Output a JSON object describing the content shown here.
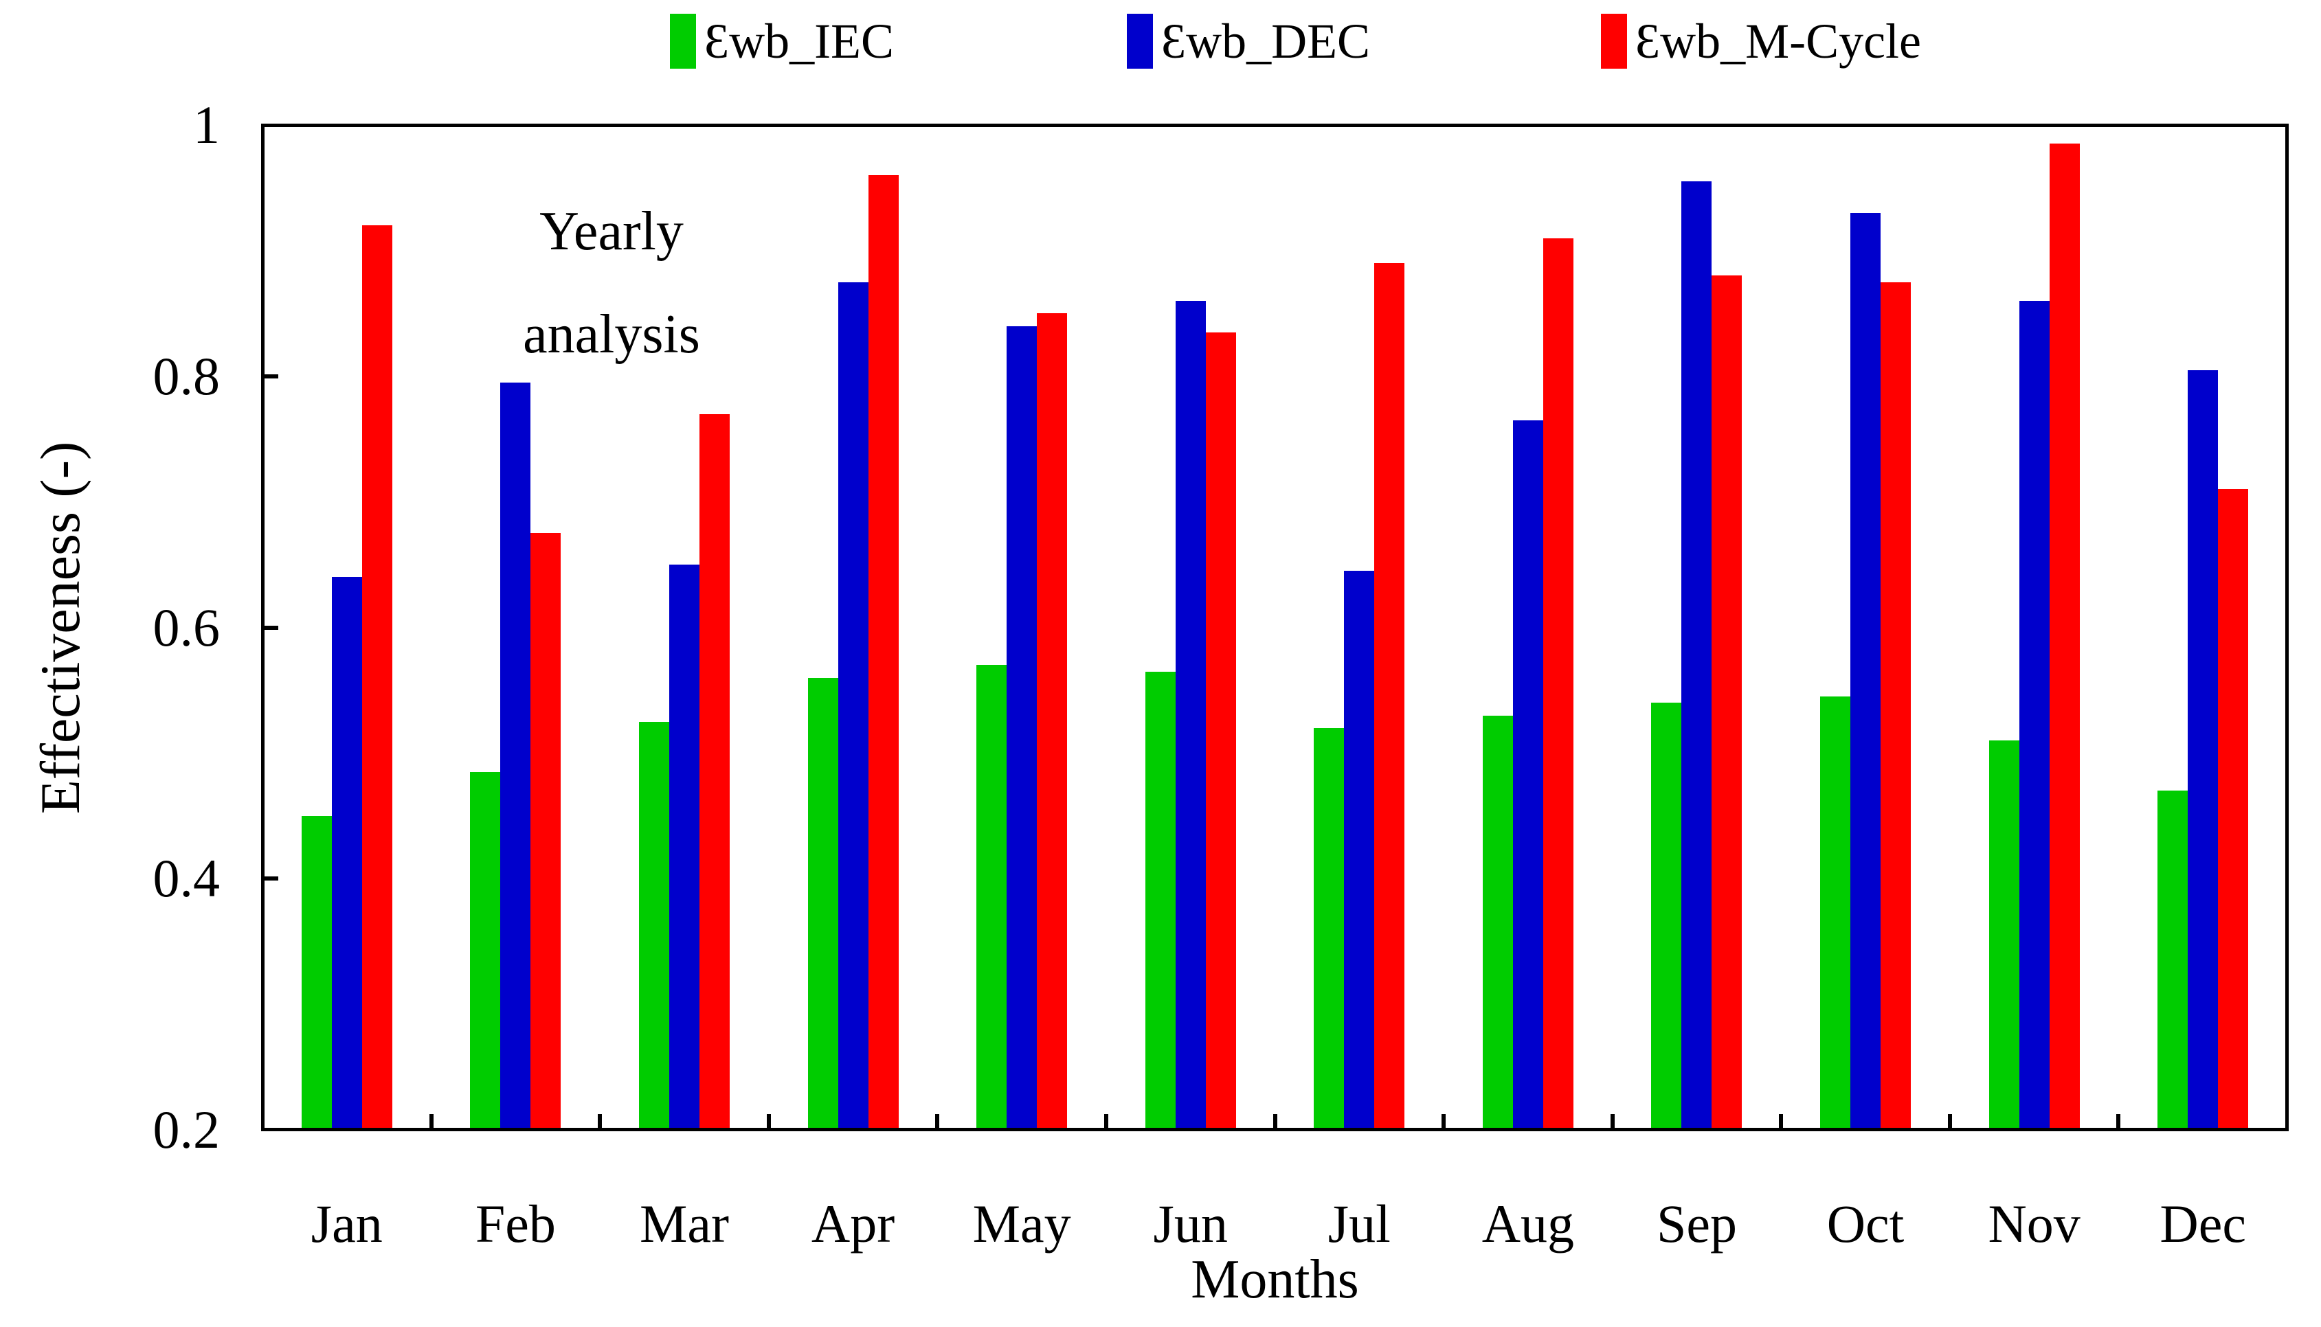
{
  "chart_data": {
    "type": "bar",
    "annotation": "Yearly\nanalysis",
    "xlabel": "Months",
    "ylabel": "Effectiveness (-)",
    "categories": [
      "Jan",
      "Feb",
      "Mar",
      "Apr",
      "May",
      "Jun",
      "Jul",
      "Aug",
      "Sep",
      "Oct",
      "Nov",
      "Dec"
    ],
    "series": [
      {
        "name": "Ɛwb_IEC",
        "color": "#00CC00",
        "values": [
          0.45,
          0.485,
          0.525,
          0.56,
          0.57,
          0.565,
          0.52,
          0.53,
          0.54,
          0.545,
          0.51,
          0.47
        ]
      },
      {
        "name": "Ɛwb_DEC",
        "color": "#0000CC",
        "values": [
          0.64,
          0.795,
          0.65,
          0.875,
          0.84,
          0.86,
          0.645,
          0.765,
          0.955,
          0.93,
          0.86,
          0.805
        ]
      },
      {
        "name": "Ɛwb_M-Cycle",
        "color": "#FF0000",
        "values": [
          0.92,
          0.675,
          0.77,
          0.96,
          0.85,
          0.835,
          0.89,
          0.91,
          0.88,
          0.875,
          0.985,
          0.71
        ]
      }
    ],
    "ylim": [
      0.2,
      1.0
    ],
    "yticks": [
      {
        "value": 1.0,
        "label": "1"
      },
      {
        "value": 0.8,
        "label": "0.8"
      },
      {
        "value": 0.6,
        "label": "0.6"
      },
      {
        "value": 0.4,
        "label": "0.4"
      },
      {
        "value": 0.2,
        "label": "0.2"
      }
    ],
    "grid": false,
    "legend_position": "top-center",
    "frame_color": "#000000"
  }
}
